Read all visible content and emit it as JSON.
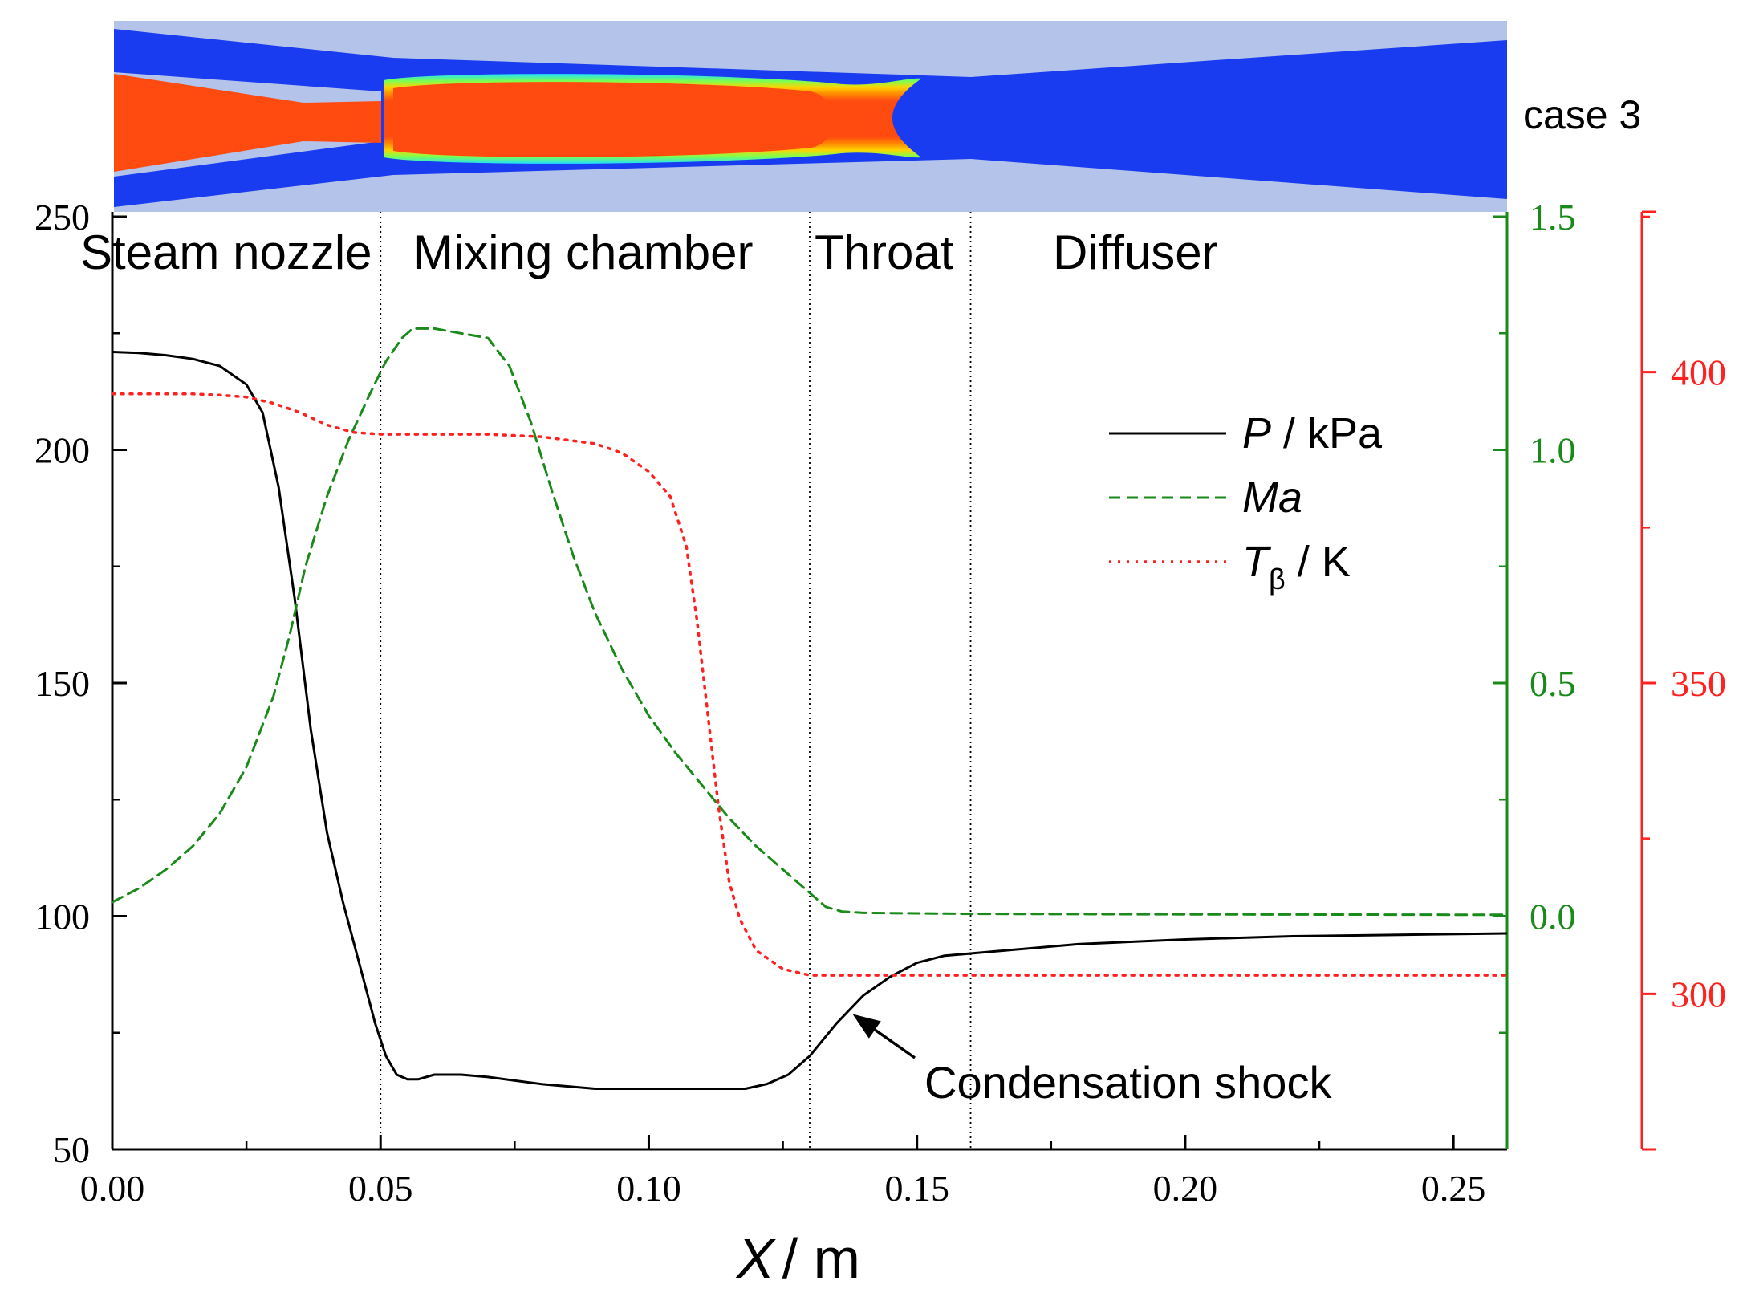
{
  "case_label": "case 3",
  "colors": {
    "pressure": "#000000",
    "mach": "#1a8a1a",
    "temperature": "#ff2020",
    "contour_wall": "#b3c3ea",
    "contour_low": "#1a3cf0",
    "contour_high": "#ff4a10",
    "contour_mid_1": "#ff8c00",
    "contour_mid_2": "#ffd400",
    "contour_mid_3": "#7cff50",
    "contour_mid_4": "#20e0ff"
  },
  "chart_data": {
    "type": "line",
    "xlabel_var": "X",
    "xlabel_unit": "/ m",
    "xlim": [
      0,
      0.26
    ],
    "x_ticks": [
      "0.00",
      "0.05",
      "0.10",
      "0.15",
      "0.20",
      "0.25"
    ],
    "left_axis": {
      "ylim": [
        50,
        250
      ],
      "ticks": [
        "50",
        "100",
        "150",
        "200",
        "250"
      ]
    },
    "mach_axis": {
      "ylim": [
        -0.5,
        1.5
      ],
      "ticks": [
        "0.0",
        "0.5",
        "1.0",
        "1.5"
      ]
    },
    "temp_axis": {
      "ylim": [
        275,
        425
      ],
      "ticks": [
        "300",
        "350",
        "400"
      ]
    },
    "regions": [
      {
        "label": "Steam nozzle"
      },
      {
        "label": "Mixing chamber"
      },
      {
        "label": "Throat"
      },
      {
        "label": "Diffuser"
      }
    ],
    "region_boundaries": [
      0.05,
      0.13,
      0.16
    ],
    "legend": [
      {
        "var": "P",
        "sub": "",
        "unit": " / kPa",
        "style": "solid"
      },
      {
        "var": "Ma",
        "sub": "",
        "unit": "",
        "style": "dashed"
      },
      {
        "var": "T",
        "sub": "β",
        "unit": " / K",
        "style": "dotted"
      }
    ],
    "annotation": {
      "text": "Condensation shock",
      "x": 0.138,
      "y": 79
    },
    "series": [
      {
        "name": "P / kPa",
        "axis": "left",
        "x": [
          0,
          0.005,
          0.01,
          0.015,
          0.02,
          0.025,
          0.028,
          0.031,
          0.034,
          0.037,
          0.04,
          0.043,
          0.046,
          0.049,
          0.051,
          0.053,
          0.055,
          0.057,
          0.06,
          0.065,
          0.07,
          0.08,
          0.09,
          0.1,
          0.11,
          0.118,
          0.122,
          0.126,
          0.13,
          0.135,
          0.14,
          0.145,
          0.15,
          0.155,
          0.16,
          0.18,
          0.2,
          0.22,
          0.24,
          0.26
        ],
        "y": [
          221,
          220.8,
          220.3,
          219.5,
          218,
          214,
          208,
          192,
          168,
          140,
          118,
          103,
          90,
          77,
          70,
          66,
          65,
          65,
          66,
          66,
          65.5,
          64,
          63,
          63,
          63,
          63,
          64,
          66,
          70,
          77,
          83,
          87,
          90,
          91.5,
          92,
          94,
          95,
          95.7,
          96,
          96.3
        ]
      },
      {
        "name": "Ma",
        "axis": "mach",
        "x": [
          0,
          0.005,
          0.01,
          0.015,
          0.02,
          0.025,
          0.03,
          0.033,
          0.036,
          0.04,
          0.044,
          0.048,
          0.051,
          0.054,
          0.056,
          0.06,
          0.065,
          0.07,
          0.074,
          0.078,
          0.082,
          0.086,
          0.09,
          0.095,
          0.1,
          0.105,
          0.11,
          0.115,
          0.12,
          0.125,
          0.13,
          0.133,
          0.136,
          0.14,
          0.15,
          0.16,
          0.2,
          0.26
        ],
        "y": [
          0.03,
          0.06,
          0.1,
          0.15,
          0.22,
          0.32,
          0.47,
          0.6,
          0.75,
          0.9,
          1.02,
          1.12,
          1.19,
          1.24,
          1.26,
          1.26,
          1.25,
          1.24,
          1.18,
          1.06,
          0.91,
          0.77,
          0.65,
          0.53,
          0.43,
          0.35,
          0.28,
          0.21,
          0.15,
          0.1,
          0.05,
          0.02,
          0.01,
          0.007,
          0.006,
          0.005,
          0.004,
          0.003
        ]
      },
      {
        "name": "T / K",
        "axis": "temp",
        "x": [
          0,
          0.005,
          0.01,
          0.015,
          0.02,
          0.025,
          0.03,
          0.035,
          0.04,
          0.045,
          0.05,
          0.06,
          0.07,
          0.08,
          0.09,
          0.095,
          0.1,
          0.104,
          0.107,
          0.109,
          0.111,
          0.113,
          0.115,
          0.117,
          0.12,
          0.125,
          0.13,
          0.14,
          0.15,
          0.2,
          0.26
        ],
        "y": [
          396.5,
          396.5,
          396.5,
          396.5,
          396.3,
          396,
          395,
          393.5,
          391.5,
          390.3,
          390,
          390,
          390,
          389.6,
          388.5,
          387,
          384,
          380,
          372,
          360,
          345,
          330,
          318,
          312,
          307,
          304,
          303,
          303,
          303,
          303,
          303
        ]
      }
    ]
  }
}
